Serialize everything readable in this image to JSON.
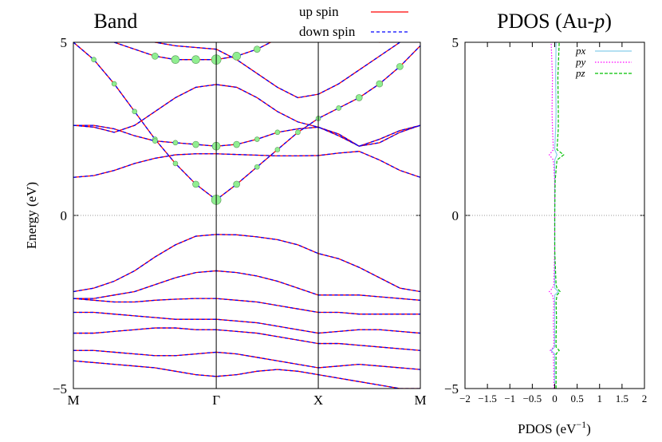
{
  "chart_data": [
    {
      "type": "line",
      "title": "Band",
      "ylabel": "Energy (eV)",
      "x": [
        0,
        0.2,
        0.4,
        0.6,
        0.8,
        1.0,
        1.2,
        1.4,
        1.6,
        1.8,
        2.0,
        2.2,
        2.4,
        2.6,
        2.8,
        3.0,
        3.2,
        3.4
      ],
      "xlim": [
        0,
        3.4
      ],
      "xticks": [
        {
          "value": 0,
          "label": "M"
        },
        {
          "value": 1.4,
          "label": "Γ"
        },
        {
          "value": 2.4,
          "label": "X"
        },
        {
          "value": 3.4,
          "label": "M"
        }
      ],
      "ylim": [
        -5,
        5
      ],
      "yticks": [
        {
          "value": -5,
          "label": "−5"
        },
        0,
        5
      ],
      "grid": "x",
      "zero_line": true,
      "series": [
        {
          "name": "up spin",
          "color": "#ff0000",
          "dash": false,
          "values": [
            [
              1.1,
              1.15,
              1.3,
              1.5,
              1.65,
              1.75,
              1.78,
              1.78,
              1.76,
              1.74,
              1.72,
              1.72,
              1.73,
              1.8,
              1.85,
              1.6,
              1.3,
              1.1
            ],
            [
              5.0,
              4.5,
              3.8,
              3.0,
              2.2,
              1.5,
              0.9,
              0.45,
              0.9,
              1.4,
              1.9,
              2.4,
              2.8,
              3.1,
              3.4,
              3.8,
              4.3,
              4.9
            ],
            [
              2.6,
              2.6,
              2.5,
              2.3,
              2.15,
              2.1,
              2.05,
              2.0,
              2.05,
              2.2,
              2.4,
              2.5,
              2.55,
              2.3,
              2.0,
              2.2,
              2.45,
              2.6
            ],
            [
              2.6,
              2.55,
              2.4,
              2.6,
              3.0,
              3.4,
              3.7,
              3.78,
              3.7,
              3.4,
              3.0,
              2.7,
              2.55,
              2.35,
              2.0,
              2.1,
              2.4,
              2.6
            ],
            [
              5.5,
              5.2,
              5.0,
              4.8,
              4.6,
              4.5,
              4.5,
              4.5,
              4.6,
              4.8,
              5.1,
              5.4,
              5.8,
              5.6,
              5.3,
              5.0,
              5.3,
              5.6
            ],
            [
              5.8,
              5.6,
              5.4,
              5.2,
              5.0,
              4.9,
              4.85,
              4.8,
              4.5,
              4.1,
              3.7,
              3.4,
              3.5,
              3.8,
              4.2,
              4.6,
              5.0,
              5.4
            ],
            [
              -2.2,
              -2.1,
              -1.9,
              -1.6,
              -1.2,
              -0.85,
              -0.6,
              -0.55,
              -0.56,
              -0.62,
              -0.7,
              -0.85,
              -1.1,
              -1.25,
              -1.5,
              -1.8,
              -2.1,
              -2.2
            ],
            [
              -2.4,
              -2.4,
              -2.3,
              -2.2,
              -2.0,
              -1.8,
              -1.65,
              -1.6,
              -1.65,
              -1.75,
              -1.9,
              -2.1,
              -2.3,
              -2.3,
              -2.3,
              -2.35,
              -2.4,
              -2.45
            ],
            [
              -2.4,
              -2.45,
              -2.5,
              -2.5,
              -2.45,
              -2.42,
              -2.4,
              -2.4,
              -2.45,
              -2.5,
              -2.6,
              -2.7,
              -2.8,
              -2.8,
              -2.85,
              -2.85,
              -2.85,
              -2.85
            ],
            [
              -2.8,
              -2.8,
              -2.85,
              -2.9,
              -2.95,
              -3.0,
              -3.0,
              -3.0,
              -3.05,
              -3.1,
              -3.2,
              -3.3,
              -3.4,
              -3.35,
              -3.3,
              -3.3,
              -3.35,
              -3.4
            ],
            [
              -3.4,
              -3.4,
              -3.35,
              -3.3,
              -3.25,
              -3.25,
              -3.3,
              -3.3,
              -3.35,
              -3.4,
              -3.5,
              -3.6,
              -3.7,
              -3.7,
              -3.75,
              -3.8,
              -3.85,
              -3.9
            ],
            [
              -3.9,
              -3.9,
              -3.95,
              -4.0,
              -4.05,
              -4.05,
              -4.0,
              -3.95,
              -4.0,
              -4.1,
              -4.2,
              -4.3,
              -4.4,
              -4.35,
              -4.3,
              -4.35,
              -4.4,
              -4.45
            ],
            [
              -4.2,
              -4.25,
              -4.3,
              -4.35,
              -4.4,
              -4.5,
              -4.6,
              -4.65,
              -4.6,
              -4.5,
              -4.45,
              -4.5,
              -4.6,
              -4.7,
              -4.8,
              -4.9,
              -5.0,
              -5.0
            ]
          ]
        },
        {
          "name": "down spin",
          "color": "#0000ff",
          "dash": true,
          "values": [
            [
              1.1,
              1.15,
              1.3,
              1.5,
              1.65,
              1.75,
              1.78,
              1.78,
              1.76,
              1.74,
              1.72,
              1.72,
              1.73,
              1.8,
              1.85,
              1.6,
              1.3,
              1.1
            ],
            [
              5.0,
              4.5,
              3.8,
              3.0,
              2.2,
              1.5,
              0.9,
              0.45,
              0.9,
              1.4,
              1.9,
              2.4,
              2.8,
              3.1,
              3.4,
              3.8,
              4.3,
              4.9
            ],
            [
              2.6,
              2.6,
              2.5,
              2.3,
              2.15,
              2.1,
              2.05,
              2.0,
              2.05,
              2.2,
              2.4,
              2.5,
              2.55,
              2.3,
              2.0,
              2.2,
              2.45,
              2.6
            ],
            [
              2.6,
              2.55,
              2.4,
              2.6,
              3.0,
              3.4,
              3.7,
              3.78,
              3.7,
              3.4,
              3.0,
              2.7,
              2.55,
              2.35,
              2.0,
              2.1,
              2.4,
              2.6
            ],
            [
              5.5,
              5.2,
              5.0,
              4.8,
              4.6,
              4.5,
              4.5,
              4.5,
              4.6,
              4.8,
              5.1,
              5.4,
              5.8,
              5.6,
              5.3,
              5.0,
              5.3,
              5.6
            ],
            [
              5.8,
              5.6,
              5.4,
              5.2,
              5.0,
              4.9,
              4.85,
              4.8,
              4.5,
              4.1,
              3.7,
              3.4,
              3.5,
              3.8,
              4.2,
              4.6,
              5.0,
              5.4
            ],
            [
              -2.2,
              -2.1,
              -1.9,
              -1.6,
              -1.2,
              -0.85,
              -0.6,
              -0.55,
              -0.56,
              -0.62,
              -0.7,
              -0.85,
              -1.1,
              -1.25,
              -1.5,
              -1.8,
              -2.1,
              -2.2
            ],
            [
              -2.4,
              -2.4,
              -2.3,
              -2.2,
              -2.0,
              -1.8,
              -1.65,
              -1.6,
              -1.65,
              -1.75,
              -1.9,
              -2.1,
              -2.3,
              -2.3,
              -2.3,
              -2.35,
              -2.4,
              -2.45
            ],
            [
              -2.4,
              -2.45,
              -2.5,
              -2.5,
              -2.45,
              -2.42,
              -2.4,
              -2.4,
              -2.45,
              -2.5,
              -2.6,
              -2.7,
              -2.8,
              -2.8,
              -2.85,
              -2.85,
              -2.85,
              -2.85
            ],
            [
              -2.8,
              -2.8,
              -2.85,
              -2.9,
              -2.95,
              -3.0,
              -3.0,
              -3.0,
              -3.05,
              -3.1,
              -3.2,
              -3.3,
              -3.4,
              -3.35,
              -3.3,
              -3.3,
              -3.35,
              -3.4
            ],
            [
              -3.4,
              -3.4,
              -3.35,
              -3.3,
              -3.25,
              -3.25,
              -3.3,
              -3.3,
              -3.35,
              -3.4,
              -3.5,
              -3.6,
              -3.7,
              -3.7,
              -3.75,
              -3.8,
              -3.85,
              -3.9
            ],
            [
              -3.9,
              -3.9,
              -3.95,
              -4.0,
              -4.05,
              -4.05,
              -4.0,
              -3.95,
              -4.0,
              -4.1,
              -4.2,
              -4.3,
              -4.4,
              -4.35,
              -4.3,
              -4.35,
              -4.4,
              -4.45
            ],
            [
              -4.2,
              -4.25,
              -4.3,
              -4.35,
              -4.4,
              -4.5,
              -4.6,
              -4.65,
              -4.6,
              -4.5,
              -4.45,
              -4.5,
              -4.6,
              -4.7,
              -4.8,
              -4.9,
              -5.0,
              -5.0
            ]
          ]
        }
      ],
      "projection": {
        "color": "#90ee90",
        "x": [
          0.2,
          0.4,
          0.6,
          0.8,
          1.0,
          1.2,
          1.4,
          1.6,
          1.8,
          2.0,
          2.2,
          2.4,
          2.6,
          2.8,
          3.0,
          3.2,
          0.8,
          1.0,
          1.2,
          1.4,
          1.6,
          1.8,
          2.0,
          0.8,
          1.0,
          1.2,
          1.4,
          1.6,
          1.8
        ],
        "y": [
          4.5,
          3.8,
          3.0,
          2.2,
          1.5,
          0.9,
          0.45,
          0.9,
          1.4,
          1.9,
          2.4,
          2.8,
          3.1,
          3.4,
          3.8,
          4.3,
          2.15,
          2.1,
          2.05,
          2.0,
          2.05,
          2.2,
          2.4,
          4.6,
          4.5,
          4.5,
          4.5,
          4.6,
          4.8
        ],
        "size": [
          3,
          3,
          3,
          3,
          3,
          4,
          6,
          4,
          3,
          3,
          3,
          3,
          3,
          4,
          4,
          4,
          3,
          3,
          4,
          5,
          4,
          3,
          3,
          4,
          5,
          5,
          6,
          5,
          4
        ]
      }
    },
    {
      "type": "line",
      "orientation": "horizontal",
      "title": [
        "PDOS (Au-",
        "p",
        ")"
      ],
      "xlabel": [
        "PDOS (eV",
        "−1",
        ")"
      ],
      "xlim": [
        -2,
        2
      ],
      "xticks": [
        {
          "value": -2,
          "label": "−2"
        },
        {
          "value": -1.5,
          "label": "−1.5"
        },
        {
          "value": -1,
          "label": "−1"
        },
        {
          "value": -0.5,
          "label": "−0.5"
        },
        0,
        0.5,
        1,
        1.5,
        2
      ],
      "ylim": [
        -5,
        5
      ],
      "yticks": [
        {
          "value": -5,
          "label": "−5"
        },
        0,
        5
      ],
      "zero_line": true,
      "y": [
        -5,
        -4.5,
        -4,
        -3.9,
        -3.8,
        -3.5,
        -3,
        -2.5,
        -2.3,
        -2.2,
        -2.1,
        -2,
        -1,
        0,
        1,
        1.6,
        1.75,
        1.9,
        2.5,
        3,
        4,
        5
      ],
      "series": [
        {
          "name": "px",
          "color": "#87ceeb",
          "dash": "none",
          "values": [
            0,
            0,
            0,
            -0.08,
            0,
            0,
            0,
            0,
            0,
            0.08,
            0,
            0,
            0,
            0,
            0,
            0,
            0.05,
            0,
            0.02,
            0.03,
            0.02,
            0.03
          ]
        },
        {
          "name": "py",
          "color": "#ff00ff",
          "dash": "dot",
          "values": [
            -0.02,
            -0.02,
            -0.03,
            -0.1,
            -0.02,
            -0.02,
            -0.03,
            -0.02,
            -0.05,
            -0.12,
            -0.05,
            -0.02,
            0,
            0,
            0,
            -0.03,
            -0.12,
            -0.03,
            -0.05,
            -0.06,
            -0.05,
            -0.08
          ]
        },
        {
          "name": "pz",
          "color": "#00c000",
          "dash": "dash",
          "values": [
            0.03,
            0.03,
            0.03,
            0.1,
            0.03,
            0.03,
            0.04,
            0.03,
            0.05,
            0.12,
            0.05,
            0.03,
            0,
            0,
            0.01,
            0.05,
            0.2,
            0.05,
            0.08,
            0.08,
            0.07,
            0.1
          ]
        }
      ]
    }
  ]
}
